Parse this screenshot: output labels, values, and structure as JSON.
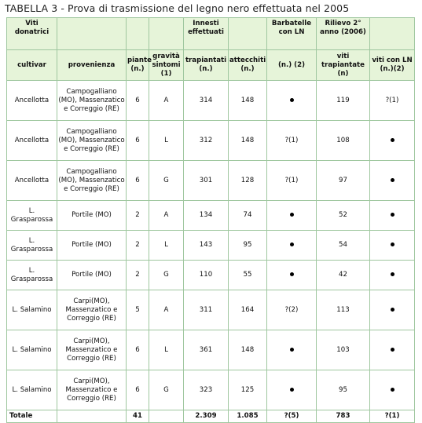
{
  "caption": "TABELLA 3 - Prova di trasmissione del legno nero effettuata nel 2005",
  "group_headers": {
    "viti_donatrici": "Viti donatrici",
    "innesti": "Innesti effettuati",
    "barbatelle": "Barbatelle con LN",
    "rilievo": "Rilievo 2° anno (2006)"
  },
  "column_headers": {
    "cultivar": "cultivar",
    "provenienza": "provenienza",
    "piante": "piante (n.)",
    "gravita": "gravità sintomi (1)",
    "trapiantati": "trapiantati (n.)",
    "attecchiti": "attecchiti (n.)",
    "barbatelle_n": "(n.) (2)",
    "viti_trapiantate": "viti trapiantate (n)",
    "viti_con_ln": "viti con LN (n.)(2)"
  },
  "rows": [
    {
      "cultivar": "Ancellotta",
      "provenienza": "Campogalliano (MO), Massenzatico e Correggio (RE)",
      "piante": "6",
      "gravita": "A",
      "trapiantati": "314",
      "attecchiti": "148",
      "barbatelle": "dot",
      "viti_trapiantate": "119",
      "viti_con_ln": "?(1)"
    },
    {
      "cultivar": "Ancellotta",
      "provenienza": "Campogalliano (MO), Massenzatico e Correggio (RE)",
      "piante": "6",
      "gravita": "L",
      "trapiantati": "312",
      "attecchiti": "148",
      "barbatelle": "?(1)",
      "viti_trapiantate": "108",
      "viti_con_ln": "dot"
    },
    {
      "cultivar": "Ancellotta",
      "provenienza": "Campogalliano (MO), Massenzatico e Correggio (RE)",
      "piante": "6",
      "gravita": "G",
      "trapiantati": "301",
      "attecchiti": "128",
      "barbatelle": "?(1)",
      "viti_trapiantate": "97",
      "viti_con_ln": "dot"
    },
    {
      "cultivar": "L. Grasparossa",
      "provenienza": "Portile (MO)",
      "piante": "2",
      "gravita": "A",
      "trapiantati": "134",
      "attecchiti": "74",
      "barbatelle": "dot",
      "viti_trapiantate": "52",
      "viti_con_ln": "dot"
    },
    {
      "cultivar": "L. Grasparossa",
      "provenienza": "Portile (MO)",
      "piante": "2",
      "gravita": "L",
      "trapiantati": "143",
      "attecchiti": "95",
      "barbatelle": "dot",
      "viti_trapiantate": "54",
      "viti_con_ln": "dot"
    },
    {
      "cultivar": "L. Grasparossa",
      "provenienza": "Portile (MO)",
      "piante": "2",
      "gravita": "G",
      "trapiantati": "110",
      "attecchiti": "55",
      "barbatelle": "dot",
      "viti_trapiantate": "42",
      "viti_con_ln": "dot"
    },
    {
      "cultivar": "L. Salamino",
      "provenienza": "Carpi(MO), Massenzatico e Correggio (RE)",
      "piante": "5",
      "gravita": "A",
      "trapiantati": "311",
      "attecchiti": "164",
      "barbatelle": "?(2)",
      "viti_trapiantate": "113",
      "viti_con_ln": "dot"
    },
    {
      "cultivar": "L. Salamino",
      "provenienza": "Carpi(MO), Massenzatico e Correggio (RE)",
      "piante": "6",
      "gravita": "L",
      "trapiantati": "361",
      "attecchiti": "148",
      "barbatelle": "dot",
      "viti_trapiantate": "103",
      "viti_con_ln": "dot"
    },
    {
      "cultivar": "L. Salamino",
      "provenienza": "Carpi(MO), Massenzatico e Correggio (RE)",
      "piante": "6",
      "gravita": "G",
      "trapiantati": "323",
      "attecchiti": "125",
      "barbatelle": "dot",
      "viti_trapiantate": "95",
      "viti_con_ln": "dot"
    }
  ],
  "totals": {
    "label": "Totale",
    "piante": "41",
    "trapiantati": "2.309",
    "attecchiti": "1.085",
    "barbatelle": "?(5)",
    "viti_trapiantate": "783",
    "viti_con_ln": "?(1)"
  }
}
